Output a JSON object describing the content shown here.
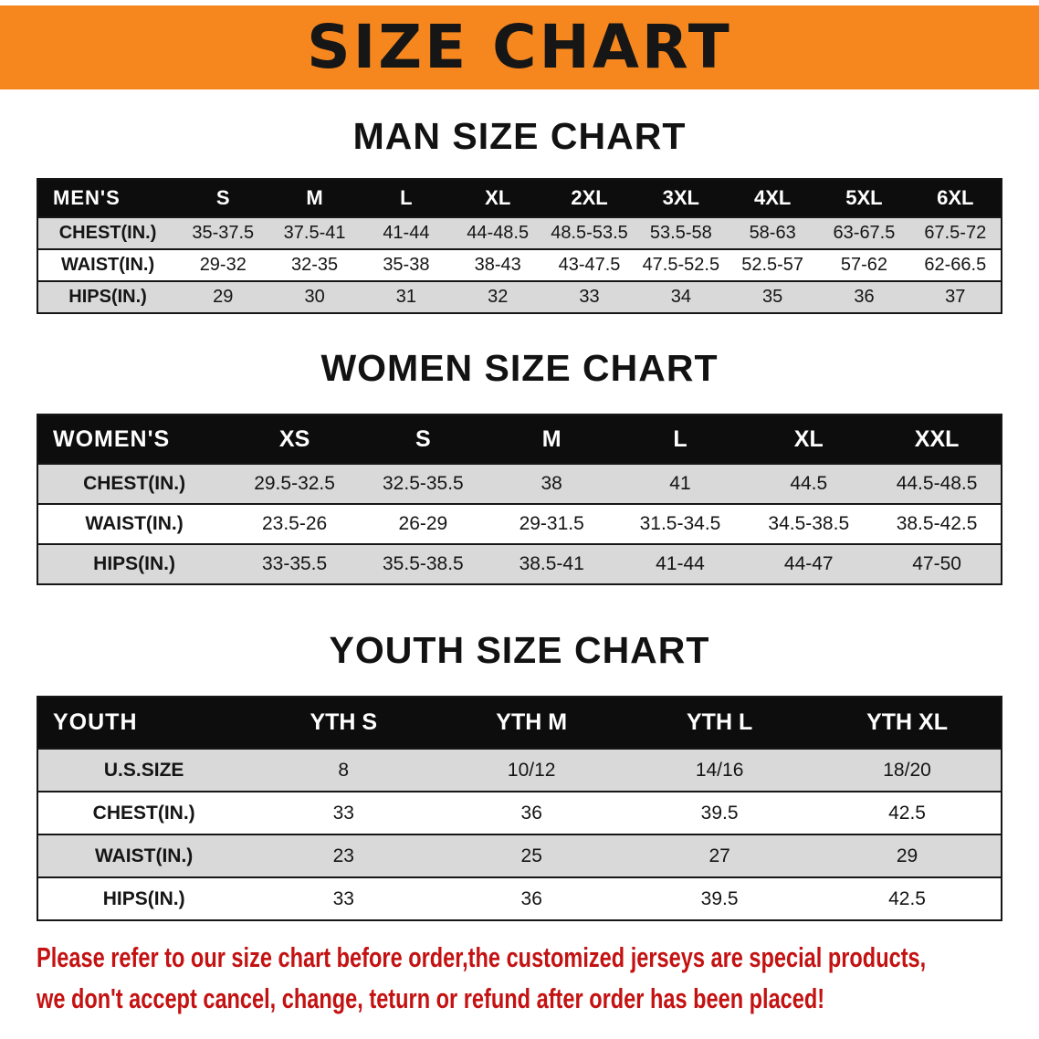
{
  "banner": {
    "title": "SIZE CHART",
    "bg_color": "#f6871f",
    "text_color": "#161616"
  },
  "sections": [
    {
      "heading": "MAN SIZE CHART",
      "table": {
        "header": [
          "MEN'S",
          "S",
          "M",
          "L",
          "XL",
          "2XL",
          "3XL",
          "4XL",
          "5XL",
          "6XL"
        ],
        "rows": [
          [
            "CHEST(IN.)",
            "35-37.5",
            "37.5-41",
            "41-44",
            "44-48.5",
            "48.5-53.5",
            "53.5-58",
            "58-63",
            "63-67.5",
            "67.5-72"
          ],
          [
            "WAIST(IN.)",
            "29-32",
            "32-35",
            "35-38",
            "38-43",
            "43-47.5",
            "47.5-52.5",
            "52.5-57",
            "57-62",
            "62-66.5"
          ],
          [
            "HIPS(IN.)",
            "29",
            "30",
            "31",
            "32",
            "33",
            "34",
            "35",
            "36",
            "37"
          ]
        ]
      }
    },
    {
      "heading": "WOMEN SIZE CHART",
      "table": {
        "header": [
          "WOMEN'S",
          "XS",
          "S",
          "M",
          "L",
          "XL",
          "XXL"
        ],
        "rows": [
          [
            "CHEST(IN.)",
            "29.5-32.5",
            "32.5-35.5",
            "38",
            "41",
            "44.5",
            "44.5-48.5"
          ],
          [
            "WAIST(IN.)",
            "23.5-26",
            "26-29",
            "29-31.5",
            "31.5-34.5",
            "34.5-38.5",
            "38.5-42.5"
          ],
          [
            "HIPS(IN.)",
            "33-35.5",
            "35.5-38.5",
            "38.5-41",
            "41-44",
            "44-47",
            "47-50"
          ]
        ]
      }
    },
    {
      "heading": "YOUTH SIZE CHART",
      "table": {
        "header": [
          "YOUTH",
          "YTH S",
          "YTH M",
          "YTH L",
          "YTH XL"
        ],
        "rows": [
          [
            "U.S.SIZE",
            "8",
            "10/12",
            "14/16",
            "18/20"
          ],
          [
            "CHEST(IN.)",
            "33",
            "36",
            "39.5",
            "42.5"
          ],
          [
            "WAIST(IN.)",
            "23",
            "25",
            "27",
            "29"
          ],
          [
            "HIPS(IN.)",
            "33",
            "36",
            "39.5",
            "42.5"
          ]
        ]
      }
    }
  ],
  "disclaimer": {
    "lines": [
      "Please refer to our size chart before order,the customized jerseys are special products,",
      "we don't accept cancel, change, teturn or refund after order has been placed!"
    ],
    "color": "#c41212"
  },
  "colors": {
    "header_row_bg": "#0d0d0d",
    "stripe_row_bg": "#d9d9d9",
    "border": "#161616"
  }
}
